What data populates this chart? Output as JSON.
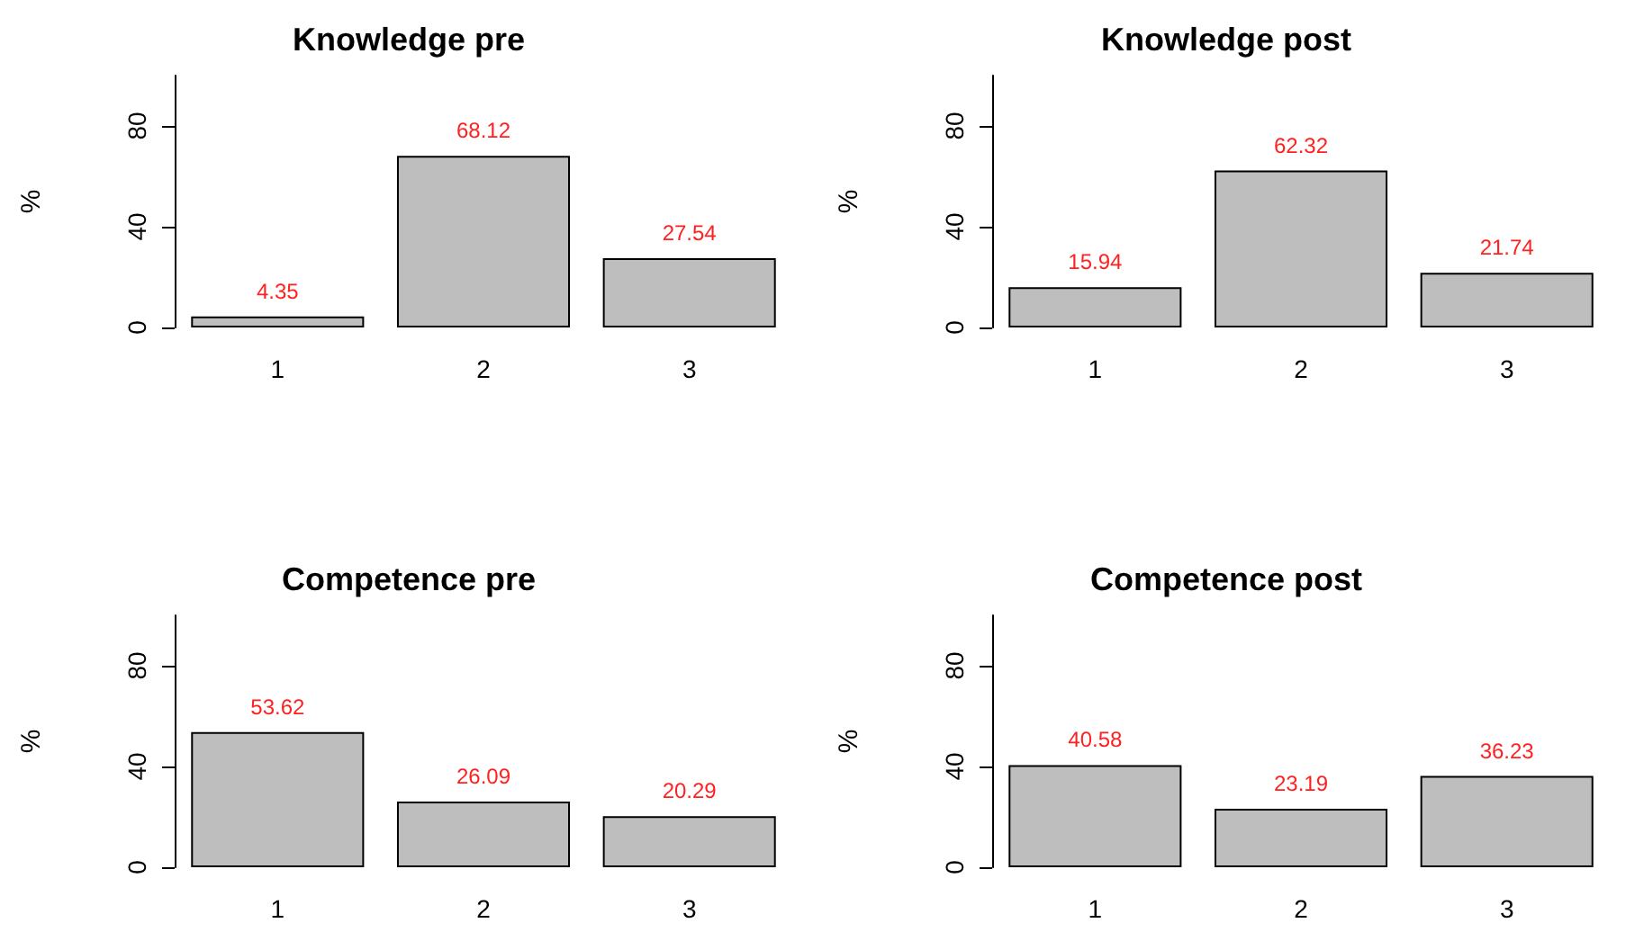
{
  "chart_data": [
    {
      "type": "bar",
      "title": "Knowledge pre",
      "ylabel": "%",
      "categories": [
        "1",
        "2",
        "3"
      ],
      "values": [
        4.35,
        68.12,
        27.54
      ],
      "color": "#bebebe",
      "ylim": [
        0,
        100
      ],
      "yticks": [
        0,
        40,
        80
      ],
      "data_labels": true
    },
    {
      "type": "bar",
      "title": "Knowledge post",
      "ylabel": "%",
      "categories": [
        "1",
        "2",
        "3"
      ],
      "values": [
        15.94,
        62.32,
        21.74
      ],
      "color": "#bebebe",
      "ylim": [
        0,
        100
      ],
      "yticks": [
        0,
        40,
        80
      ],
      "data_labels": true
    },
    {
      "type": "bar",
      "title": "Competence pre",
      "ylabel": "%",
      "categories": [
        "1",
        "2",
        "3"
      ],
      "values": [
        53.62,
        26.09,
        20.29
      ],
      "color": "#bebebe",
      "ylim": [
        0,
        100
      ],
      "yticks": [
        0,
        40,
        80
      ],
      "data_labels": true
    },
    {
      "type": "bar",
      "title": "Competence post",
      "ylabel": "%",
      "categories": [
        "1",
        "2",
        "3"
      ],
      "values": [
        40.58,
        23.19,
        36.23
      ],
      "color": "#bebebe",
      "ylim": [
        0,
        100
      ],
      "yticks": [
        0,
        40,
        80
      ],
      "data_labels": true
    }
  ]
}
